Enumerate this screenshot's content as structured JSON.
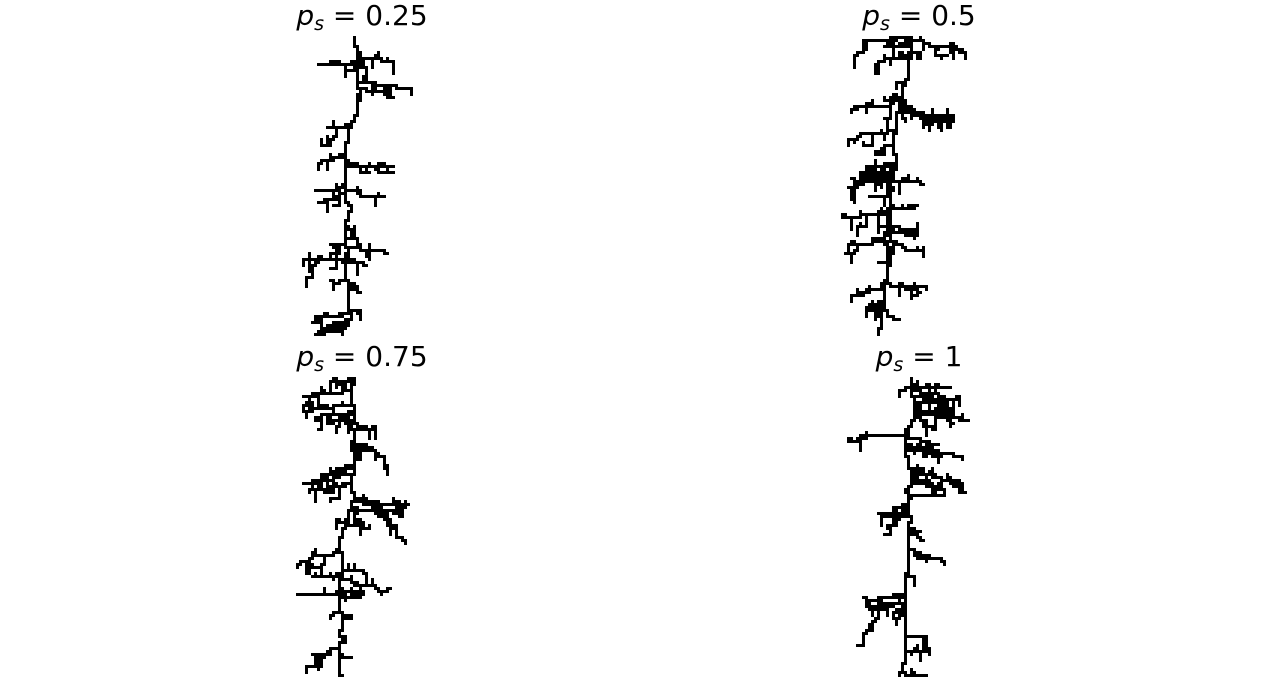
{
  "figure": {
    "panels": [
      {
        "symbol": "p",
        "subscript": "s",
        "equals": " = ",
        "value": "0.25",
        "ink": "#000000",
        "seed": 11
      },
      {
        "symbol": "p",
        "subscript": "s",
        "equals": " = ",
        "value": "0.5",
        "ink": "#000000",
        "seed": 29
      },
      {
        "symbol": "p",
        "subscript": "s",
        "equals": " = ",
        "value": "0.75",
        "ink": "#000000",
        "seed": 47
      },
      {
        "symbol": "p",
        "subscript": "s",
        "equals": " = ",
        "value": "1",
        "ink": "#000000",
        "seed": 83
      }
    ]
  }
}
